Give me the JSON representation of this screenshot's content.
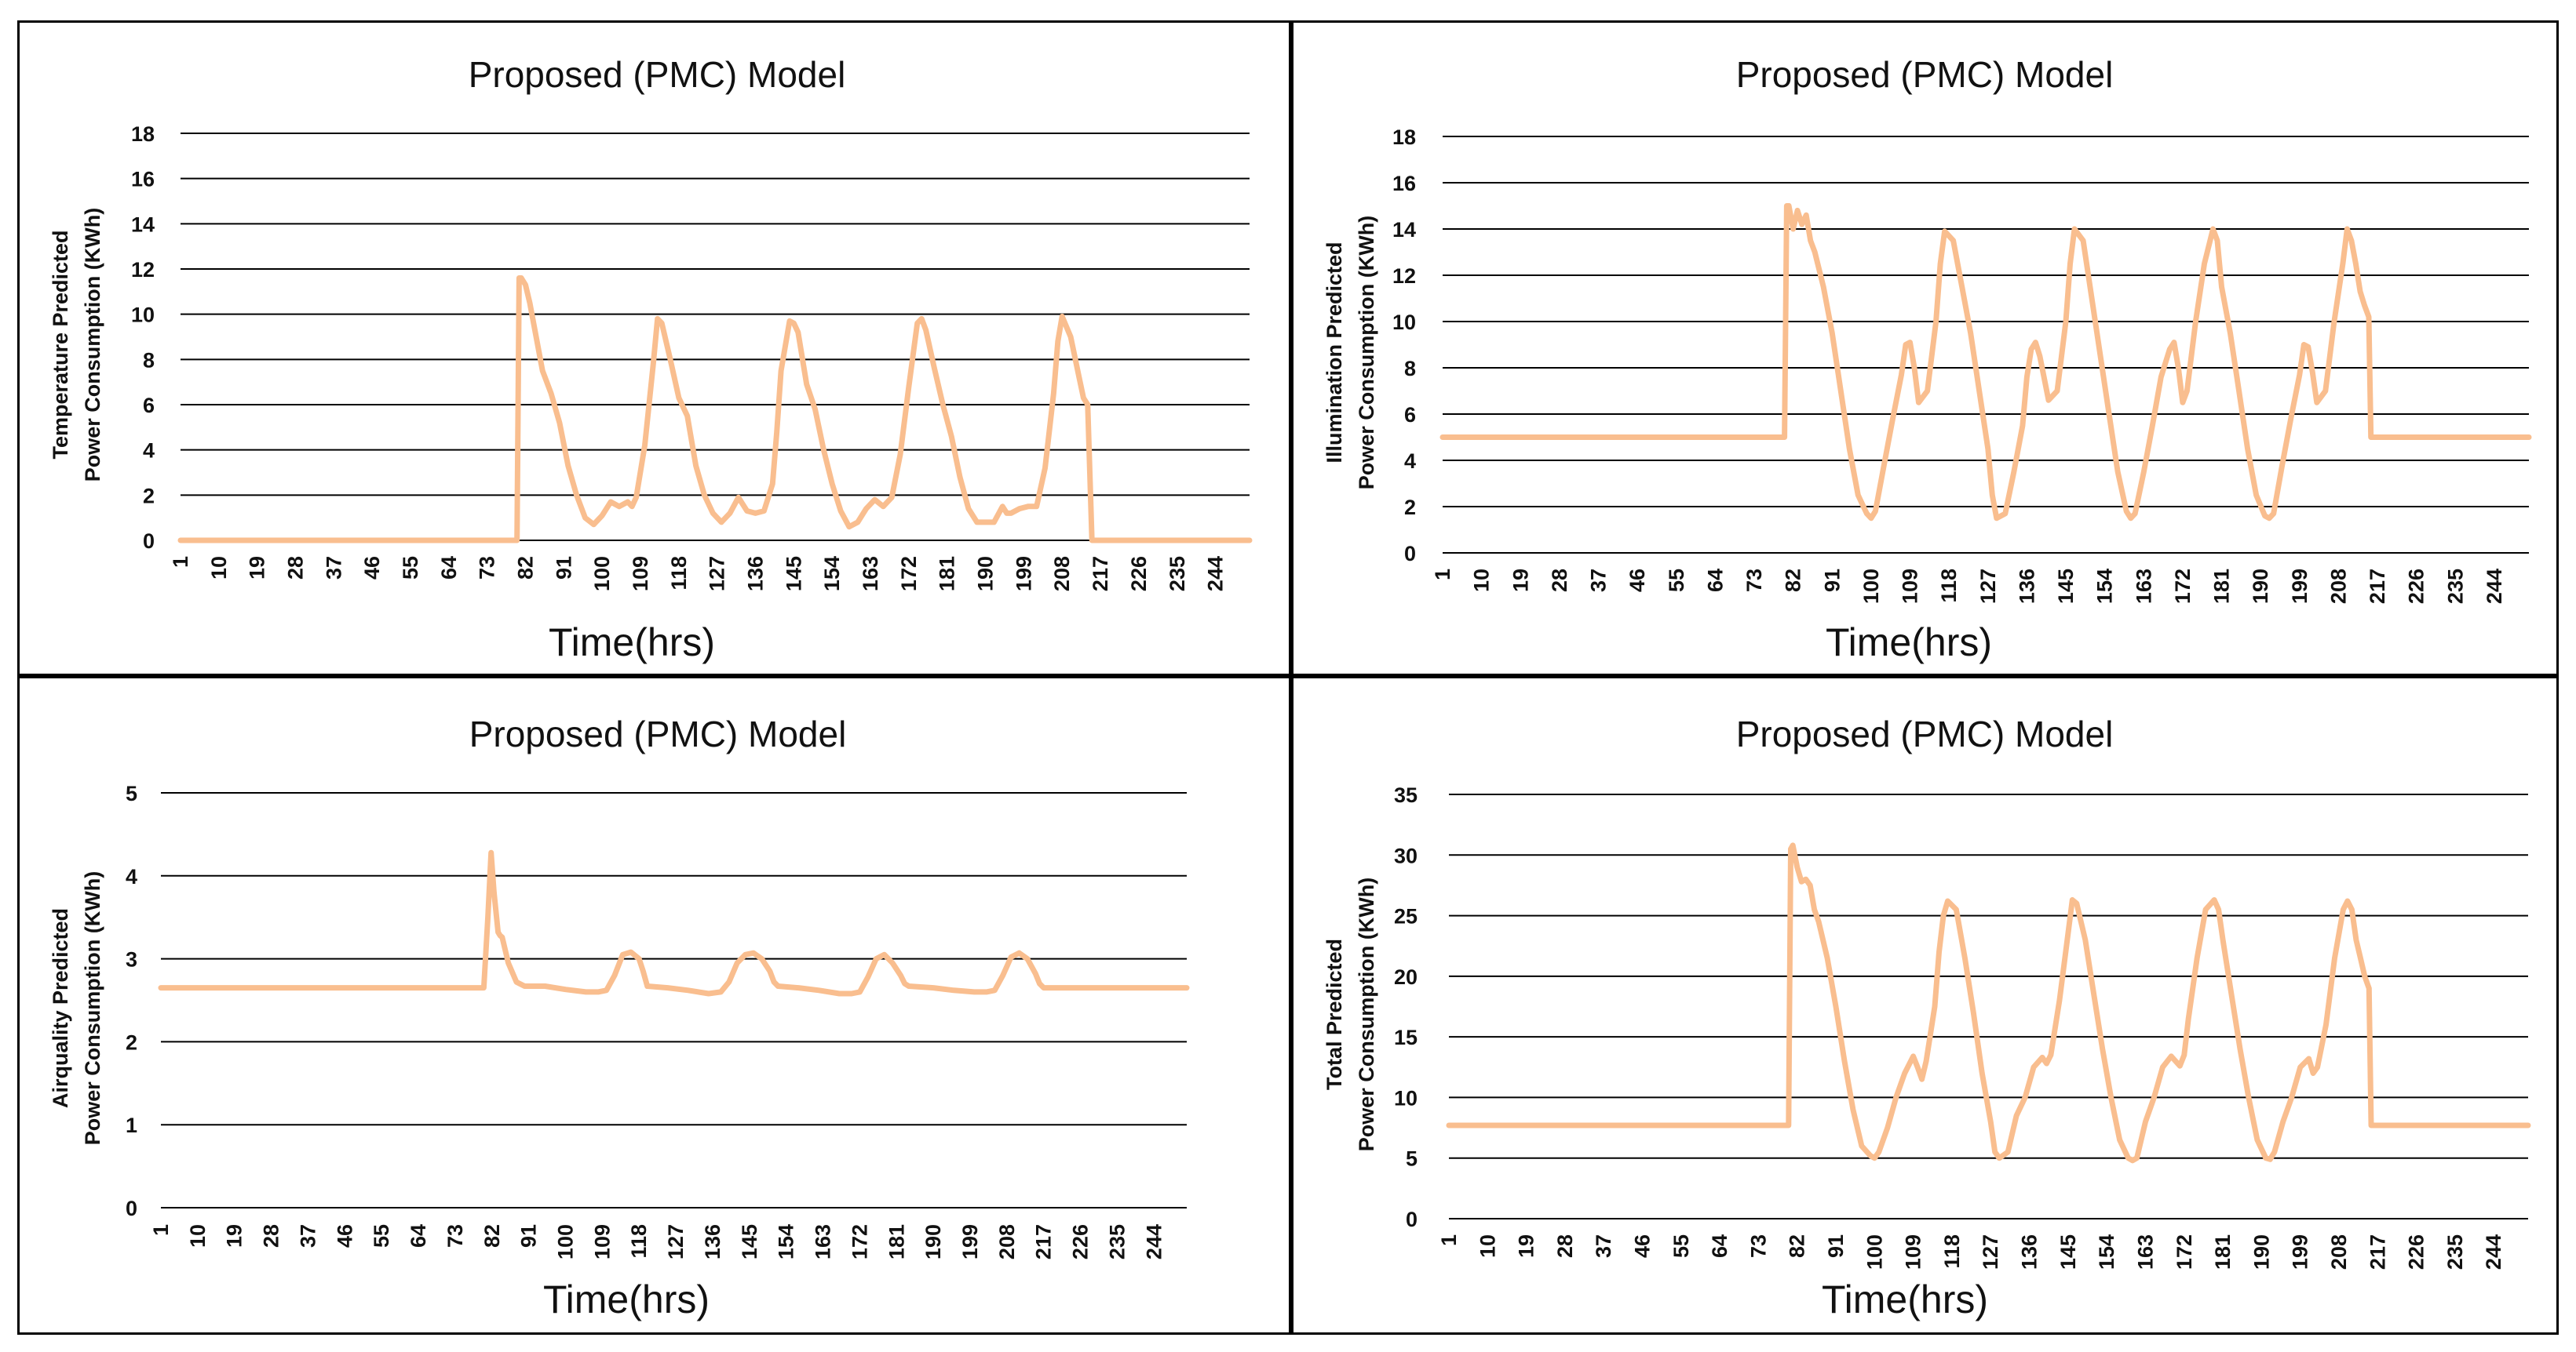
{
  "figure": {
    "series_color": "#F9BE8F"
  },
  "chart_data": [
    {
      "type": "line",
      "title": "Proposed (PMC) Model",
      "xlabel": "Time(hrs)",
      "ylabel_lines": [
        "Temperature Predicted",
        "Power Consumption (KWh)"
      ],
      "ylim": [
        0,
        18
      ],
      "yticks": [
        0,
        2,
        4,
        6,
        8,
        10,
        12,
        14,
        16,
        18
      ],
      "xlim": [
        1,
        252
      ],
      "xticks": [
        1,
        10,
        19,
        28,
        37,
        46,
        55,
        64,
        73,
        82,
        91,
        100,
        109,
        118,
        127,
        136,
        145,
        154,
        163,
        172,
        181,
        190,
        199,
        208,
        217,
        226,
        235,
        244
      ],
      "grid": true,
      "series": [
        {
          "name": "Temperature Predicted Power Consumption (KWh)",
          "x": [
            1,
            80,
            80.5,
            81,
            82,
            83,
            84,
            86,
            88,
            90,
            92,
            94,
            96,
            98,
            100,
            102,
            104,
            106,
            107,
            108,
            110,
            112,
            113,
            114,
            116,
            118,
            120,
            122,
            124,
            126,
            128,
            130,
            132,
            134,
            136,
            138,
            140,
            141,
            142,
            144,
            145,
            146,
            148,
            150,
            152,
            154,
            156,
            158,
            160,
            162,
            164,
            166,
            168,
            170,
            172,
            174,
            175,
            176,
            178,
            180,
            182,
            184,
            186,
            188,
            190,
            192,
            194,
            195,
            196,
            198,
            200,
            202,
            204,
            206,
            207,
            208,
            210,
            212,
            213,
            214,
            215,
            220,
            252
          ],
          "values": [
            0,
            0,
            11.6,
            11.6,
            11.3,
            10.5,
            9.5,
            7.5,
            6.5,
            5.2,
            3.3,
            2.0,
            1.0,
            0.7,
            1.1,
            1.7,
            1.5,
            1.7,
            1.5,
            1.9,
            4.2,
            7.8,
            9.8,
            9.6,
            8.0,
            6.3,
            5.5,
            3.3,
            2.0,
            1.2,
            0.8,
            1.2,
            1.9,
            1.3,
            1.2,
            1.3,
            2.5,
            4.8,
            7.5,
            9.7,
            9.6,
            9.2,
            6.9,
            5.8,
            4.0,
            2.5,
            1.3,
            0.6,
            0.8,
            1.4,
            1.8,
            1.5,
            1.9,
            3.8,
            6.8,
            9.6,
            9.8,
            9.3,
            7.6,
            6.0,
            4.6,
            2.8,
            1.4,
            0.8,
            0.8,
            0.8,
            1.5,
            1.2,
            1.2,
            1.4,
            1.5,
            1.5,
            3.2,
            6.5,
            8.8,
            9.9,
            9.0,
            7.2,
            6.3,
            6.0,
            0,
            0,
            0
          ]
        }
      ]
    },
    {
      "type": "line",
      "title": "Proposed (PMC) Model",
      "xlabel": "Time(hrs)",
      "ylabel_lines": [
        "Illumination  Predicted",
        "Power Consumption (KWh)"
      ],
      "ylim": [
        0,
        18
      ],
      "yticks": [
        0,
        2,
        4,
        6,
        8,
        10,
        12,
        14,
        16,
        18
      ],
      "xlim": [
        1,
        252
      ],
      "xticks": [
        1,
        10,
        19,
        28,
        37,
        46,
        55,
        64,
        73,
        82,
        91,
        100,
        109,
        118,
        127,
        136,
        145,
        154,
        163,
        172,
        181,
        190,
        199,
        208,
        217,
        226,
        235,
        244
      ],
      "grid": true,
      "series": [
        {
          "name": "Illumination Predicted Power Consumption (KWh)",
          "x": [
            1,
            80,
            80.5,
            81,
            82,
            83,
            84,
            85,
            86,
            87,
            89,
            91,
            93,
            95,
            97,
            99,
            100,
            101,
            103,
            105,
            107,
            108,
            109,
            110,
            111,
            113,
            115,
            116,
            117,
            119,
            121,
            123,
            125,
            127,
            128,
            129,
            131,
            133,
            135,
            136,
            137,
            138,
            139,
            141,
            143,
            145,
            146,
            147,
            149,
            151,
            153,
            155,
            157,
            159,
            160,
            161,
            163,
            165,
            167,
            169,
            170,
            171,
            172,
            173,
            175,
            177,
            179,
            180,
            181,
            183,
            185,
            187,
            189,
            191,
            192,
            193,
            195,
            197,
            199,
            200,
            201,
            202,
            203,
            205,
            207,
            209,
            210,
            211,
            212,
            213,
            214,
            215,
            215.5,
            230,
            252
          ],
          "values": [
            5,
            5,
            15.0,
            15.0,
            14.0,
            14.8,
            14.2,
            14.6,
            13.5,
            13.0,
            11.5,
            9.5,
            7.0,
            4.5,
            2.5,
            1.7,
            1.5,
            1.8,
            3.8,
            5.8,
            7.7,
            9.0,
            9.1,
            8.0,
            6.5,
            7.0,
            10.0,
            12.5,
            13.9,
            13.5,
            11.5,
            9.5,
            7.0,
            4.5,
            2.5,
            1.5,
            1.7,
            3.5,
            5.5,
            7.6,
            8.8,
            9.1,
            8.5,
            6.6,
            7.0,
            10.0,
            12.5,
            14.0,
            13.5,
            11.0,
            8.5,
            6.0,
            3.5,
            1.8,
            1.5,
            1.7,
            3.5,
            5.5,
            7.6,
            8.8,
            9.1,
            8.0,
            6.5,
            7.0,
            10.0,
            12.5,
            14.0,
            13.5,
            11.5,
            9.5,
            7.0,
            4.5,
            2.5,
            1.6,
            1.5,
            1.7,
            3.8,
            5.8,
            7.7,
            9.0,
            8.9,
            7.8,
            6.5,
            7.0,
            10.0,
            12.5,
            14.0,
            13.5,
            12.5,
            11.3,
            10.7,
            10.2,
            5,
            5,
            5
          ]
        }
      ]
    },
    {
      "type": "line",
      "title": "Proposed (PMC) Model",
      "xlabel": "Time(hrs)",
      "ylabel_lines": [
        "Airquality Predicted",
        "Power Consumption (KWh)"
      ],
      "ylim": [
        0,
        5
      ],
      "yticks": [
        0,
        1,
        2,
        3,
        4,
        5
      ],
      "xlim": [
        1,
        252
      ],
      "xticks": [
        1,
        10,
        19,
        28,
        37,
        46,
        55,
        64,
        73,
        82,
        91,
        100,
        109,
        118,
        127,
        136,
        145,
        154,
        163,
        172,
        181,
        190,
        199,
        208,
        217,
        226,
        235,
        244
      ],
      "grid": true,
      "series": [
        {
          "name": "Airquality Predicted Power Consumption (KWh)",
          "x": [
            1,
            80,
            81,
            81.8,
            82.5,
            83.5,
            84,
            84.5,
            86,
            88,
            90,
            95,
            100,
            105,
            108,
            110,
            112,
            114,
            116,
            118,
            119,
            120,
            125,
            130,
            135,
            138,
            140,
            142,
            144,
            146,
            148,
            150,
            151,
            152,
            157,
            162,
            167,
            170,
            172,
            174,
            176,
            178,
            180,
            182,
            183,
            184,
            190,
            195,
            200,
            203,
            205,
            207,
            209,
            211,
            213,
            215,
            216,
            217,
            252
          ],
          "values": [
            2.65,
            2.65,
            3.5,
            4.28,
            3.8,
            3.32,
            3.28,
            3.26,
            2.95,
            2.72,
            2.67,
            2.67,
            2.63,
            2.6,
            2.6,
            2.62,
            2.8,
            3.05,
            3.08,
            3.0,
            2.85,
            2.67,
            2.65,
            2.62,
            2.58,
            2.6,
            2.72,
            2.95,
            3.05,
            3.07,
            3.0,
            2.85,
            2.72,
            2.67,
            2.65,
            2.62,
            2.58,
            2.58,
            2.6,
            2.78,
            3.0,
            3.05,
            2.95,
            2.8,
            2.7,
            2.67,
            2.65,
            2.62,
            2.6,
            2.6,
            2.62,
            2.8,
            3.02,
            3.07,
            3.0,
            2.82,
            2.7,
            2.65,
            2.65
          ]
        }
      ]
    },
    {
      "type": "line",
      "title": "Proposed (PMC) Model",
      "xlabel": "Time(hrs)",
      "ylabel_lines": [
        "Total Predicted",
        "Power Consumption (KWh)"
      ],
      "ylim": [
        0,
        35
      ],
      "yticks": [
        0,
        5,
        10,
        15,
        20,
        25,
        30,
        35
      ],
      "xlim": [
        1,
        252
      ],
      "xticks": [
        1,
        10,
        19,
        28,
        37,
        46,
        55,
        64,
        73,
        82,
        91,
        100,
        109,
        118,
        127,
        136,
        145,
        154,
        163,
        172,
        181,
        190,
        199,
        208,
        217,
        226,
        235,
        244
      ],
      "grid": true,
      "series": [
        {
          "name": "Total Predicted Power Consumption (KWh)",
          "x": [
            1,
            80,
            80.5,
            81,
            82,
            83,
            84,
            85,
            86,
            87,
            89,
            91,
            93,
            95,
            97,
            99,
            100,
            101,
            103,
            105,
            107,
            109,
            110,
            111,
            112,
            114,
            115,
            116,
            117,
            119,
            121,
            123,
            125,
            127,
            128,
            129,
            131,
            133,
            135,
            137,
            139,
            140,
            141,
            143,
            145,
            146,
            147,
            149,
            151,
            153,
            155,
            157,
            159,
            160,
            161,
            163,
            165,
            167,
            169,
            171,
            172,
            173,
            175,
            177,
            179,
            180,
            181,
            183,
            185,
            187,
            189,
            191,
            192,
            193,
            195,
            197,
            199,
            201,
            202,
            203,
            205,
            207,
            209,
            210,
            211,
            212,
            213,
            214,
            215,
            215.5,
            230,
            252
          ],
          "values": [
            7.7,
            7.7,
            30.5,
            30.8,
            29.0,
            27.8,
            28.0,
            27.5,
            25.5,
            24.5,
            21.5,
            17.5,
            13.0,
            9.0,
            6.0,
            5.2,
            5.0,
            5.5,
            7.5,
            10.0,
            12.0,
            13.4,
            12.5,
            11.5,
            13.0,
            17.5,
            22.0,
            25.0,
            26.2,
            25.5,
            21.5,
            17.0,
            12.0,
            8.0,
            5.5,
            5.0,
            5.5,
            8.5,
            10.0,
            12.5,
            13.3,
            12.8,
            13.5,
            18.0,
            23.5,
            26.3,
            26.0,
            23.0,
            18.5,
            14.0,
            10.0,
            6.5,
            5.0,
            4.8,
            5.0,
            8.0,
            10.0,
            12.5,
            13.4,
            12.6,
            13.5,
            16.5,
            21.5,
            25.5,
            26.3,
            25.5,
            23.0,
            18.5,
            14.0,
            10.0,
            6.5,
            5.0,
            4.9,
            5.5,
            8.0,
            10.0,
            12.5,
            13.2,
            12.0,
            12.5,
            16.0,
            21.5,
            25.5,
            26.2,
            25.5,
            23.0,
            21.5,
            20.0,
            19.0,
            7.7,
            7.7,
            7.7
          ]
        }
      ]
    }
  ]
}
